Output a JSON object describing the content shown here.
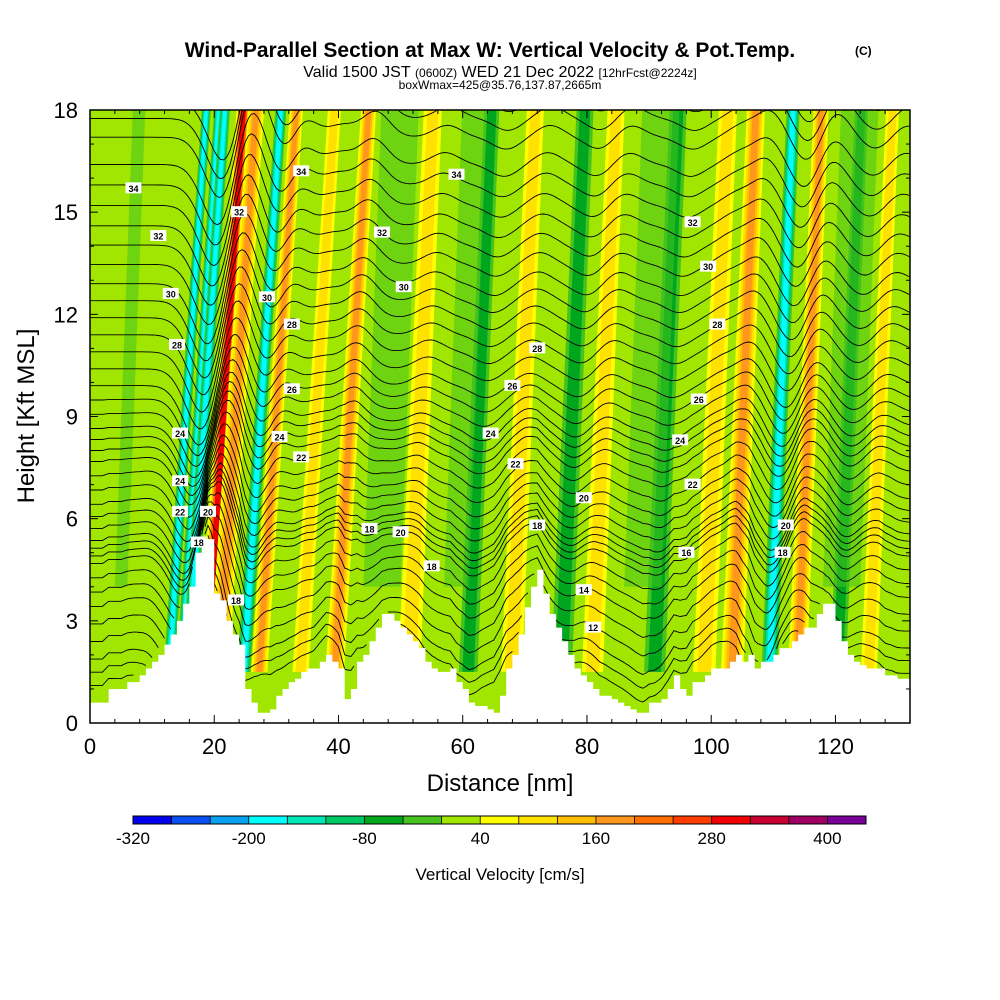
{
  "title": {
    "main": "Wind-Parallel Section at Max W: Vertical Velocity & Pot.Temp.",
    "copyright": "(C)",
    "line2_a": "Valid 1500 JST",
    "line2_b": "(0600Z)",
    "line2_c": "WED 21 Dec 2022",
    "line2_d": "[12hrFcst@2224z]",
    "line3": "boxWmax=425@35.76,137.87,2665m"
  },
  "chart_data": {
    "type": "heatmap",
    "xlabel": "Distance [nm]",
    "ylabel": "Height [Kft MSL]",
    "xlim": [
      0,
      132
    ],
    "ylim": [
      0,
      18
    ],
    "x_ticks": [
      0,
      20,
      40,
      60,
      80,
      100,
      120
    ],
    "y_ticks": [
      0,
      3,
      6,
      9,
      12,
      15,
      18
    ],
    "colorbar": {
      "label": "Vertical Velocity [cm/s]",
      "range": [
        -320,
        440
      ],
      "tick_values": [
        -320,
        -200,
        -80,
        40,
        160,
        280,
        400
      ],
      "colors": [
        "#0000ee",
        "#0a50f0",
        "#0aa0f0",
        "#00ffff",
        "#00e6b4",
        "#00c864",
        "#00a61e",
        "#46c31e",
        "#a0e600",
        "#ffff00",
        "#ffe100",
        "#ffbe00",
        "#ff961e",
        "#ff6e00",
        "#ff3c00",
        "#f00000",
        "#c80032",
        "#a00064",
        "#780096"
      ]
    },
    "velocity_features": [
      {
        "x": 14.5,
        "w": 0.9,
        "kind": "down"
      },
      {
        "x": 16.5,
        "w": 0.9,
        "kind": "down"
      },
      {
        "x": 17.5,
        "w": 1.0,
        "kind": "down"
      },
      {
        "x": 20.5,
        "w": 1.4,
        "kind": "strong_up"
      },
      {
        "x": 22.5,
        "w": 1.6,
        "kind": "up"
      },
      {
        "x": 26.5,
        "w": 1.1,
        "kind": "down"
      },
      {
        "x": 29.0,
        "w": 1.3,
        "kind": "up"
      },
      {
        "x": 35.5,
        "w": 1.3,
        "kind": "weak_up"
      },
      {
        "x": 41.0,
        "w": 1.5,
        "kind": "up"
      },
      {
        "x": 52.5,
        "w": 1.8,
        "kind": "weak_up"
      },
      {
        "x": 62.0,
        "w": 1.5,
        "kind": "weak_down"
      },
      {
        "x": 69.0,
        "w": 1.7,
        "kind": "weak_up"
      },
      {
        "x": 77.0,
        "w": 1.7,
        "kind": "weak_down"
      },
      {
        "x": 82.0,
        "w": 1.7,
        "kind": "weak_up"
      },
      {
        "x": 92.0,
        "w": 1.7,
        "kind": "weak_down"
      },
      {
        "x": 100.0,
        "w": 1.8,
        "kind": "weak_up"
      },
      {
        "x": 104.5,
        "w": 1.8,
        "kind": "up"
      },
      {
        "x": 110.5,
        "w": 1.3,
        "kind": "down"
      },
      {
        "x": 115.0,
        "w": 1.5,
        "kind": "up"
      },
      {
        "x": 121.5,
        "w": 1.3,
        "kind": "weak_down"
      },
      {
        "x": 126.5,
        "w": 1.3,
        "kind": "weak_up"
      }
    ],
    "terrain": [
      [
        0,
        0.6
      ],
      [
        2,
        0.6
      ],
      [
        3,
        1.0
      ],
      [
        5,
        1.0
      ],
      [
        6,
        1.2
      ],
      [
        8,
        1.4
      ],
      [
        9,
        1.6
      ],
      [
        10,
        1.8
      ],
      [
        11,
        2.0
      ],
      [
        12,
        2.3
      ],
      [
        13,
        2.6
      ],
      [
        14,
        3.0
      ],
      [
        15,
        3.5
      ],
      [
        16,
        4.0
      ],
      [
        17,
        5.0
      ],
      [
        18,
        5.4
      ],
      [
        19,
        5.4
      ],
      [
        20,
        3.8
      ],
      [
        21,
        3.6
      ],
      [
        22,
        3.0
      ],
      [
        23,
        2.6
      ],
      [
        24,
        2.3
      ],
      [
        25,
        1.0
      ],
      [
        26,
        0.6
      ],
      [
        27,
        0.3
      ],
      [
        28,
        0.3
      ],
      [
        29,
        0.4
      ],
      [
        30,
        0.8
      ],
      [
        31,
        1.0
      ],
      [
        32,
        1.2
      ],
      [
        33,
        1.3
      ],
      [
        34,
        1.5
      ],
      [
        35,
        1.6
      ],
      [
        36,
        1.6
      ],
      [
        37,
        1.8
      ],
      [
        38,
        2.0
      ],
      [
        39,
        1.8
      ],
      [
        40,
        1.6
      ],
      [
        41,
        0.7
      ],
      [
        42,
        1.0
      ],
      [
        43,
        1.8
      ],
      [
        44,
        2.0
      ],
      [
        45,
        2.4
      ],
      [
        46,
        2.8
      ],
      [
        47,
        3.2
      ],
      [
        48,
        3.2
      ],
      [
        49,
        3.0
      ],
      [
        50,
        2.8
      ],
      [
        51,
        2.6
      ],
      [
        52,
        2.4
      ],
      [
        53,
        2.2
      ],
      [
        54,
        1.8
      ],
      [
        55,
        1.6
      ],
      [
        56,
        1.5
      ],
      [
        57,
        1.5
      ],
      [
        58,
        1.6
      ],
      [
        59,
        1.2
      ],
      [
        60,
        1.0
      ],
      [
        61,
        0.6
      ],
      [
        62,
        0.5
      ],
      [
        63,
        0.5
      ],
      [
        64,
        0.4
      ],
      [
        65,
        0.3
      ],
      [
        66,
        0.8
      ],
      [
        67,
        1.6
      ],
      [
        68,
        2.0
      ],
      [
        69,
        2.6
      ],
      [
        70,
        3.4
      ],
      [
        71,
        4.0
      ],
      [
        72,
        4.5
      ],
      [
        73,
        3.8
      ],
      [
        74,
        3.2
      ],
      [
        75,
        2.8
      ],
      [
        76,
        2.4
      ],
      [
        77,
        2.0
      ],
      [
        78,
        1.6
      ],
      [
        79,
        1.4
      ],
      [
        80,
        1.2
      ],
      [
        81,
        1.0
      ],
      [
        82,
        0.8
      ],
      [
        83,
        0.8
      ],
      [
        84,
        0.7
      ],
      [
        85,
        0.6
      ],
      [
        86,
        0.5
      ],
      [
        87,
        0.4
      ],
      [
        88,
        0.3
      ],
      [
        89,
        0.3
      ],
      [
        90,
        0.6
      ],
      [
        91,
        0.6
      ],
      [
        92,
        0.7
      ],
      [
        93,
        1.0
      ],
      [
        94,
        1.4
      ],
      [
        95,
        1.0
      ],
      [
        96,
        0.8
      ],
      [
        97,
        1.2
      ],
      [
        98,
        1.2
      ],
      [
        99,
        1.4
      ],
      [
        100,
        1.6
      ],
      [
        101,
        1.6
      ],
      [
        102,
        1.6
      ],
      [
        103,
        1.8
      ],
      [
        104,
        2.0
      ],
      [
        105,
        1.8
      ],
      [
        106,
        2.0
      ],
      [
        107,
        1.6
      ],
      [
        108,
        1.8
      ],
      [
        109,
        1.8
      ],
      [
        110,
        2.0
      ],
      [
        111,
        2.2
      ],
      [
        112,
        2.2
      ],
      [
        113,
        2.4
      ],
      [
        114,
        2.6
      ],
      [
        115,
        2.8
      ],
      [
        116,
        2.8
      ],
      [
        117,
        3.2
      ],
      [
        118,
        3.5
      ],
      [
        119,
        3.5
      ],
      [
        120,
        3.0
      ],
      [
        121,
        2.4
      ],
      [
        122,
        2.0
      ],
      [
        123,
        1.8
      ],
      [
        124,
        1.7
      ],
      [
        125,
        1.6
      ],
      [
        126,
        1.6
      ],
      [
        127,
        1.6
      ],
      [
        128,
        1.4
      ],
      [
        129,
        1.4
      ],
      [
        130,
        1.3
      ],
      [
        131,
        1.3
      ],
      [
        132,
        1.3
      ]
    ],
    "theta_contours": [
      {
        "value": 12,
        "base_h": 1.6
      },
      {
        "value": 14,
        "base_h": 3.2
      },
      {
        "value": 16,
        "base_h": 4.5
      },
      {
        "value": 18,
        "base_h": 5.2
      },
      {
        "value": 20,
        "base_h": 6.3
      },
      {
        "value": 22,
        "base_h": 7.6
      },
      {
        "value": 24,
        "base_h": 8.6
      },
      {
        "value": 26,
        "base_h": 9.9
      },
      {
        "value": 28,
        "base_h": 11.4
      },
      {
        "value": 30,
        "base_h": 12.9
      },
      {
        "value": 32,
        "base_h": 14.6
      },
      {
        "value": 34,
        "base_h": 16.4
      }
    ],
    "contour_labels": [
      {
        "text": "34",
        "x": 7,
        "y": 15.7
      },
      {
        "text": "34",
        "x": 34,
        "y": 16.2
      },
      {
        "text": "34",
        "x": 59,
        "y": 16.1
      },
      {
        "text": "32",
        "x": 11,
        "y": 14.3
      },
      {
        "text": "32",
        "x": 24,
        "y": 15.0
      },
      {
        "text": "32",
        "x": 47,
        "y": 14.4
      },
      {
        "text": "32",
        "x": 97,
        "y": 14.7
      },
      {
        "text": "30",
        "x": 13,
        "y": 12.6
      },
      {
        "text": "30",
        "x": 28.5,
        "y": 12.5
      },
      {
        "text": "30",
        "x": 50.5,
        "y": 12.8
      },
      {
        "text": "30",
        "x": 99.5,
        "y": 13.4
      },
      {
        "text": "28",
        "x": 14,
        "y": 11.1
      },
      {
        "text": "28",
        "x": 32.5,
        "y": 11.7
      },
      {
        "text": "28",
        "x": 72,
        "y": 11.0
      },
      {
        "text": "28",
        "x": 101,
        "y": 11.7
      },
      {
        "text": "26",
        "x": 32.5,
        "y": 9.8
      },
      {
        "text": "26",
        "x": 68,
        "y": 9.9
      },
      {
        "text": "26",
        "x": 98,
        "y": 9.5
      },
      {
        "text": "24",
        "x": 14.5,
        "y": 8.5
      },
      {
        "text": "24",
        "x": 30.5,
        "y": 8.4
      },
      {
        "text": "24",
        "x": 64.5,
        "y": 8.5
      },
      {
        "text": "24",
        "x": 95,
        "y": 8.3
      },
      {
        "text": "22",
        "x": 14.5,
        "y": 6.2
      },
      {
        "text": "22",
        "x": 34,
        "y": 7.8
      },
      {
        "text": "22",
        "x": 68.5,
        "y": 7.6
      },
      {
        "text": "22",
        "x": 97,
        "y": 7.0
      },
      {
        "text": "24",
        "x": 14.5,
        "y": 7.1
      },
      {
        "text": "20",
        "x": 19,
        "y": 6.2
      },
      {
        "text": "20",
        "x": 50,
        "y": 5.6
      },
      {
        "text": "20",
        "x": 79.5,
        "y": 6.6
      },
      {
        "text": "20",
        "x": 112,
        "y": 5.8
      },
      {
        "text": "18",
        "x": 17.5,
        "y": 5.3
      },
      {
        "text": "18",
        "x": 45,
        "y": 5.7
      },
      {
        "text": "18",
        "x": 72,
        "y": 5.8
      },
      {
        "text": "18",
        "x": 111.5,
        "y": 5.0
      },
      {
        "text": "18",
        "x": 23.5,
        "y": 3.6
      },
      {
        "text": "18",
        "x": 55,
        "y": 4.6
      },
      {
        "text": "16",
        "x": 96,
        "y": 5.0
      },
      {
        "text": "14",
        "x": 79.5,
        "y": 3.9
      },
      {
        "text": "12",
        "x": 81,
        "y": 2.8
      }
    ]
  }
}
